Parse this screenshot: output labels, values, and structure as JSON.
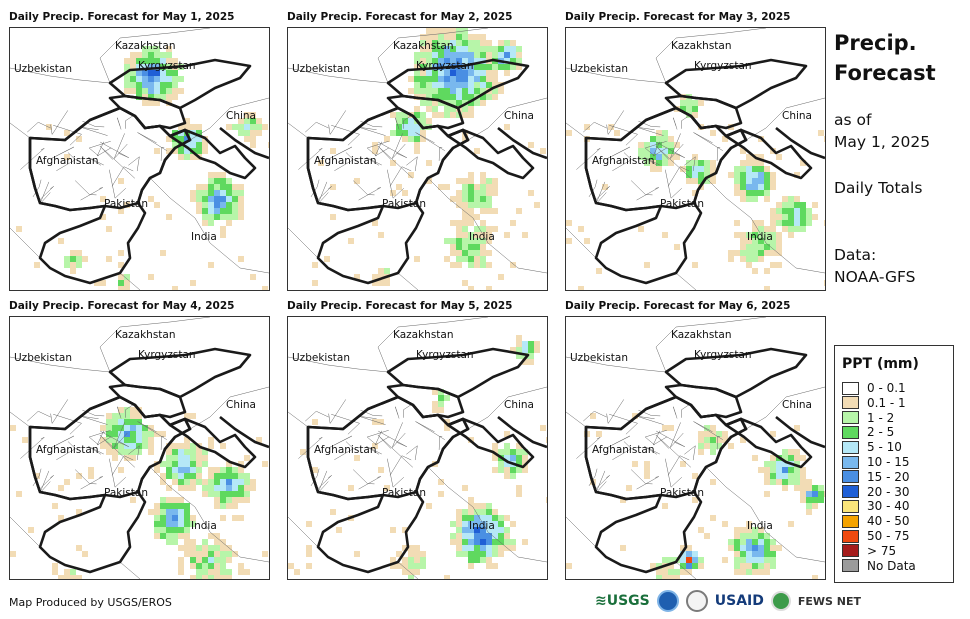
{
  "panels": [
    {
      "title": "Daily Precip. Forecast for May 1, 2025",
      "day": 1
    },
    {
      "title": "Daily Precip. Forecast for May 2, 2025",
      "day": 2
    },
    {
      "title": "Daily Precip. Forecast for May 3, 2025",
      "day": 3
    },
    {
      "title": "Daily Precip. Forecast for May 4, 2025",
      "day": 4
    },
    {
      "title": "Daily Precip. Forecast for May 5, 2025",
      "day": 5
    },
    {
      "title": "Daily Precip. Forecast for May 6, 2025",
      "day": 6
    }
  ],
  "map_labels": {
    "kazakhstan": "Kazakhstan",
    "uzbekistan": "Uzbekistan",
    "kyrgyzstan": "Kyrgyzstan",
    "china": "China",
    "afghanistan": "Afghanistan",
    "pakistan": "Pakistan",
    "india": "India"
  },
  "sidebar": {
    "title_line1": "Precip.",
    "title_line2": "Forecast",
    "as_of": "as of",
    "date": "May 1, 2025",
    "totals": "Daily Totals",
    "data_label": "Data:",
    "data_source": "NOAA-GFS"
  },
  "legend": {
    "title": "PPT (mm)",
    "items": [
      {
        "label": "0 - 0.1",
        "color": "#ffffff"
      },
      {
        "label": "0.1 - 1",
        "color": "#f2dcb5"
      },
      {
        "label": "1 - 2",
        "color": "#b7f5a9"
      },
      {
        "label": "2 - 5",
        "color": "#5fd95f"
      },
      {
        "label": "5 - 10",
        "color": "#b5e8f7"
      },
      {
        "label": "10 - 15",
        "color": "#79b8ee"
      },
      {
        "label": "15 - 20",
        "color": "#4a8fe3"
      },
      {
        "label": "20 - 30",
        "color": "#1f5fd6"
      },
      {
        "label": "30 - 40",
        "color": "#fbe57a"
      },
      {
        "label": "40 - 50",
        "color": "#f5a300"
      },
      {
        "label": "50 - 75",
        "color": "#ee4a10"
      },
      {
        "label": "> 75",
        "color": "#a51c1c"
      },
      {
        "label": "No Data",
        "color": "#9b9b9b"
      }
    ]
  },
  "footer": {
    "credit": "Map Produced by USGS/EROS"
  },
  "logos": {
    "usgs": "≋USGS",
    "usaid": "USAID",
    "fews": "FEWS NET"
  }
}
